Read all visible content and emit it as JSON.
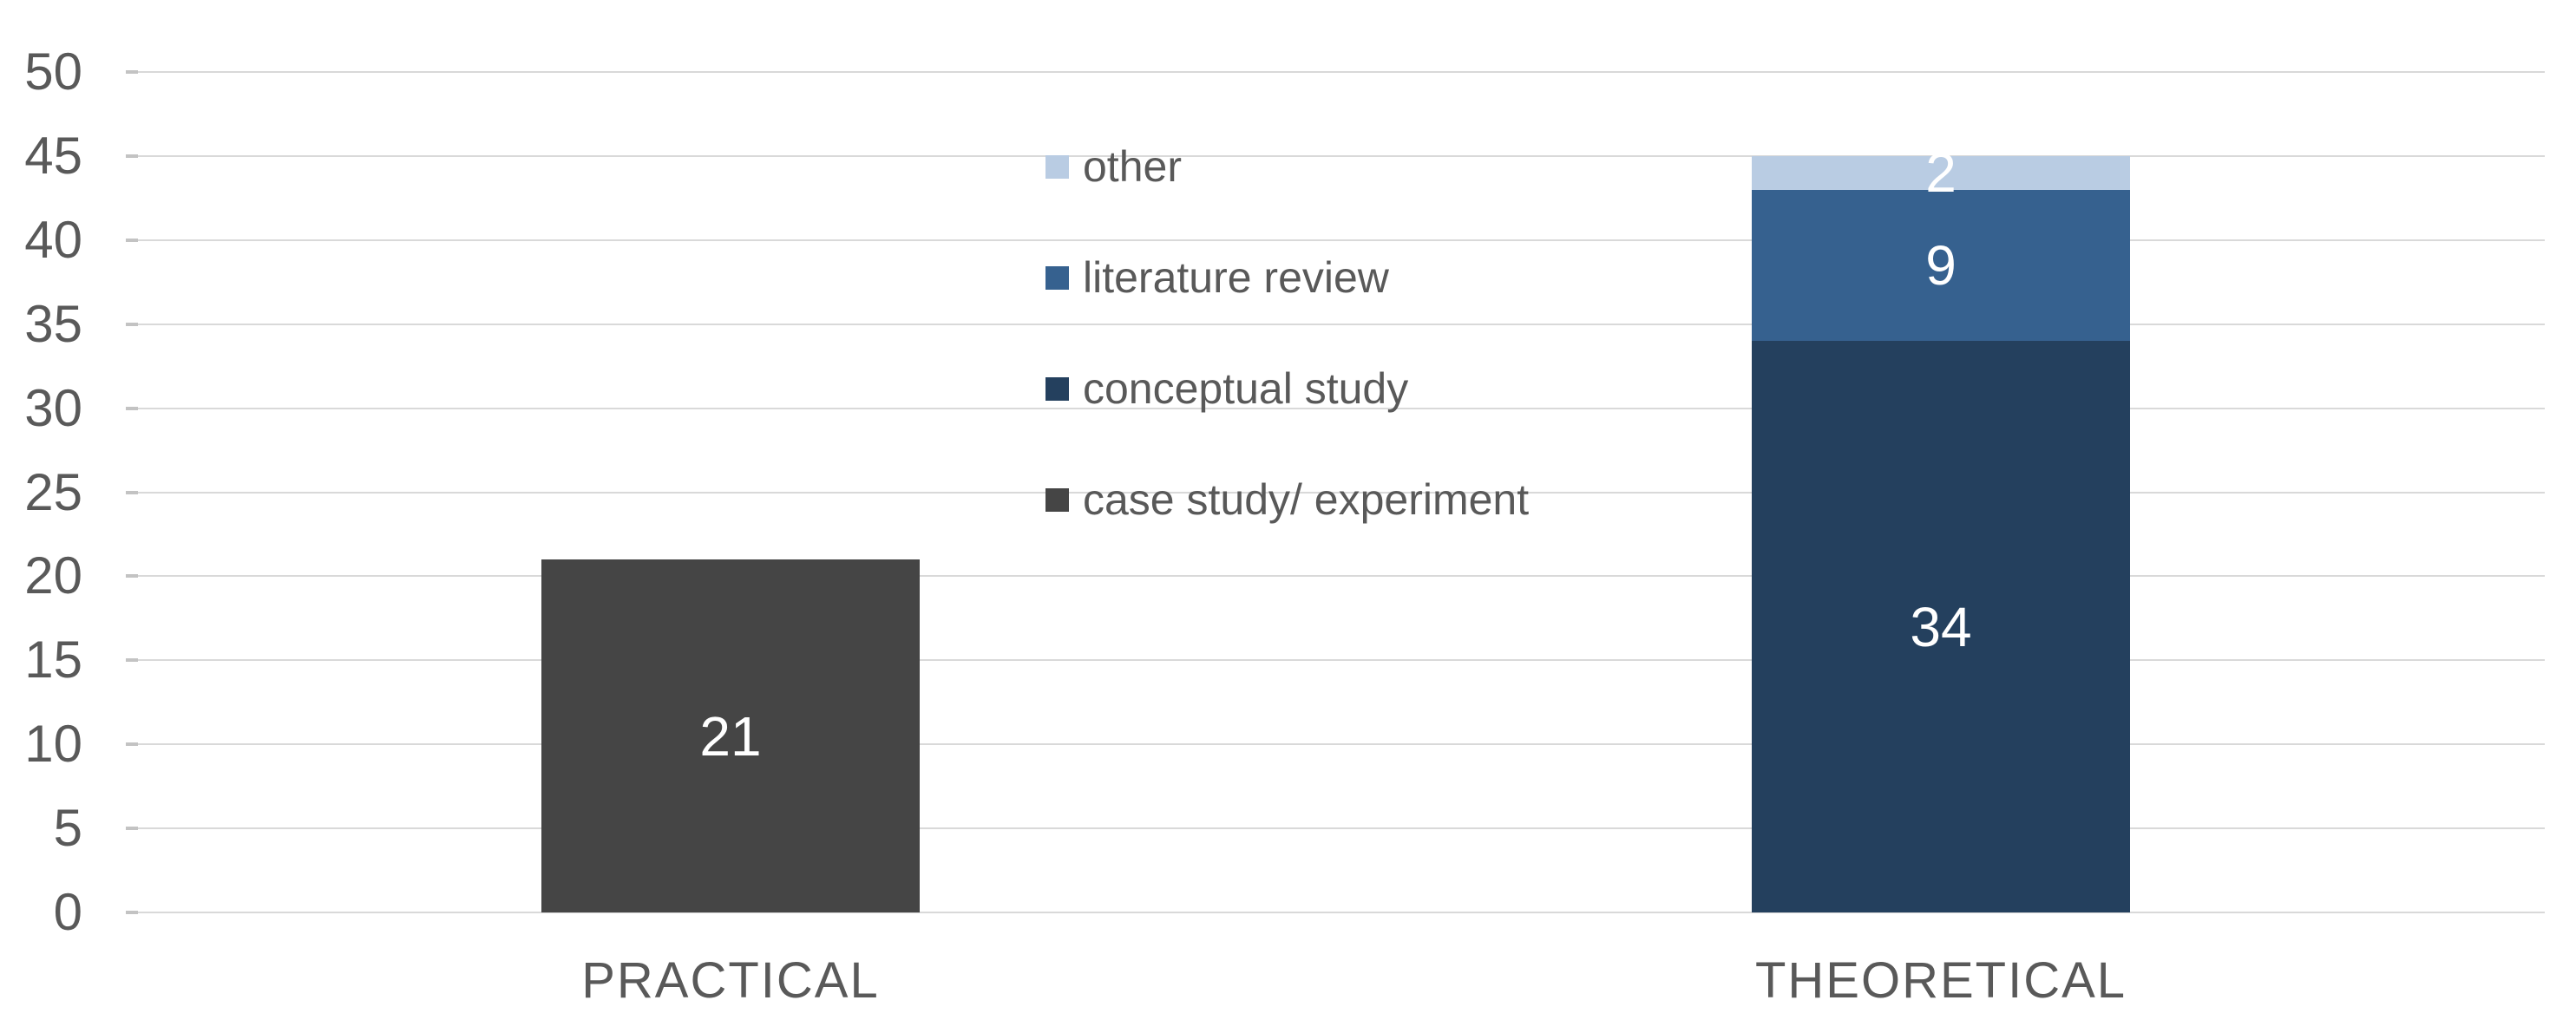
{
  "chart_data": {
    "type": "bar",
    "stacked": true,
    "title": "",
    "xlabel": "",
    "ylabel": "",
    "categories": [
      "PRACTICAL",
      "THEORETICAL"
    ],
    "series": [
      {
        "name": "case study/ experiment",
        "color": "#454545",
        "values": [
          21,
          0
        ]
      },
      {
        "name": "conceptual study",
        "color": "#24405e",
        "values": [
          0,
          34
        ]
      },
      {
        "name": "literature review",
        "color": "#36618f",
        "values": [
          0,
          9
        ]
      },
      {
        "name": "other",
        "color": "#b9cce3",
        "values": [
          0,
          2
        ]
      }
    ],
    "legend": {
      "position": "top-center-inside",
      "items": [
        {
          "label": "other",
          "color": "#b9cce3"
        },
        {
          "label": "literature review",
          "color": "#36618f"
        },
        {
          "label": "conceptual study",
          "color": "#24405e"
        },
        {
          "label": "case study/ experiment",
          "color": "#454545"
        }
      ]
    },
    "ylim": [
      0,
      50
    ],
    "yticks": [
      0,
      5,
      10,
      15,
      20,
      25,
      30,
      35,
      40,
      45,
      50
    ],
    "grid": true,
    "data_labels_shown": true,
    "data_label_values": {
      "PRACTICAL": [
        21
      ],
      "THEORETICAL": [
        34,
        9,
        2
      ]
    },
    "data_label_color": "#ffffff",
    "axis_text_color": "#595959",
    "gridline_color": "#d9d9d9",
    "background_color": "#ffffff"
  }
}
